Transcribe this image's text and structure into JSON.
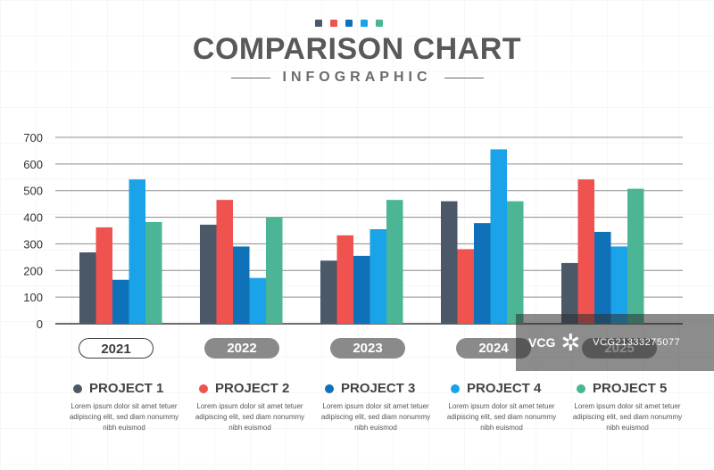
{
  "header": {
    "dots": [
      "#4a5868",
      "#f0524f",
      "#0f71b8",
      "#1aa3e8",
      "#4bb596"
    ],
    "title": "COMPARISON CHART",
    "subtitle": "INFOGRAPHIC"
  },
  "chart_data": {
    "type": "bar",
    "title": "COMPARISON CHART",
    "categories": [
      "2021",
      "2022",
      "2023",
      "2024",
      "2025"
    ],
    "series": [
      {
        "name": "PROJECT 1",
        "color": "#4a5868",
        "values": [
          268,
          372,
          237,
          460,
          228
        ]
      },
      {
        "name": "PROJECT 2",
        "color": "#f0524f",
        "values": [
          362,
          465,
          332,
          280,
          542
        ]
      },
      {
        "name": "PROJECT 3",
        "color": "#0f71b8",
        "values": [
          165,
          290,
          255,
          378,
          345
        ]
      },
      {
        "name": "PROJECT 4",
        "color": "#1aa3e8",
        "values": [
          542,
          172,
          355,
          655,
          290
        ]
      },
      {
        "name": "PROJECT 5",
        "color": "#4bb596",
        "values": [
          382,
          400,
          465,
          460,
          507
        ]
      }
    ],
    "yticks": [
      0,
      100,
      200,
      300,
      400,
      500,
      600,
      700
    ],
    "ylim": [
      0,
      700
    ],
    "xlabel": "",
    "ylabel": "",
    "grid": true,
    "legend_position": "bottom"
  },
  "years": [
    {
      "label": "2021",
      "style": "outline"
    },
    {
      "label": "2022",
      "style": "filled"
    },
    {
      "label": "2023",
      "style": "filled"
    },
    {
      "label": "2024",
      "style": "filled"
    },
    {
      "label": "2025",
      "style": "filled"
    }
  ],
  "legend": [
    {
      "name": "PROJECT 1",
      "color": "#4a5868",
      "desc": "Lorem ipsum dolor sit amet tetuer adipiscing elit, sed diam nonummy nibh euismod"
    },
    {
      "name": "PROJECT 2",
      "color": "#f0524f",
      "desc": "Lorem ipsum dolor sit amet tetuer adipiscing elit, sed diam nonummy nibh euismod"
    },
    {
      "name": "PROJECT 3",
      "color": "#0f71b8",
      "desc": "Lorem ipsum dolor sit amet tetuer adipiscing elit, sed diam nonummy nibh euismod"
    },
    {
      "name": "PROJECT 4",
      "color": "#1aa3e8",
      "desc": "Lorem ipsum dolor sit amet tetuer adipiscing elit, sed diam nonummy nibh euismod"
    },
    {
      "name": "PROJECT 5",
      "color": "#4bb596",
      "desc": "Lorem ipsum dolor sit amet tetuer adipiscing elit, sed diam nonummy nibh euismod"
    }
  ],
  "watermark": {
    "logo": "VCG",
    "text": "VCG21333275077"
  }
}
